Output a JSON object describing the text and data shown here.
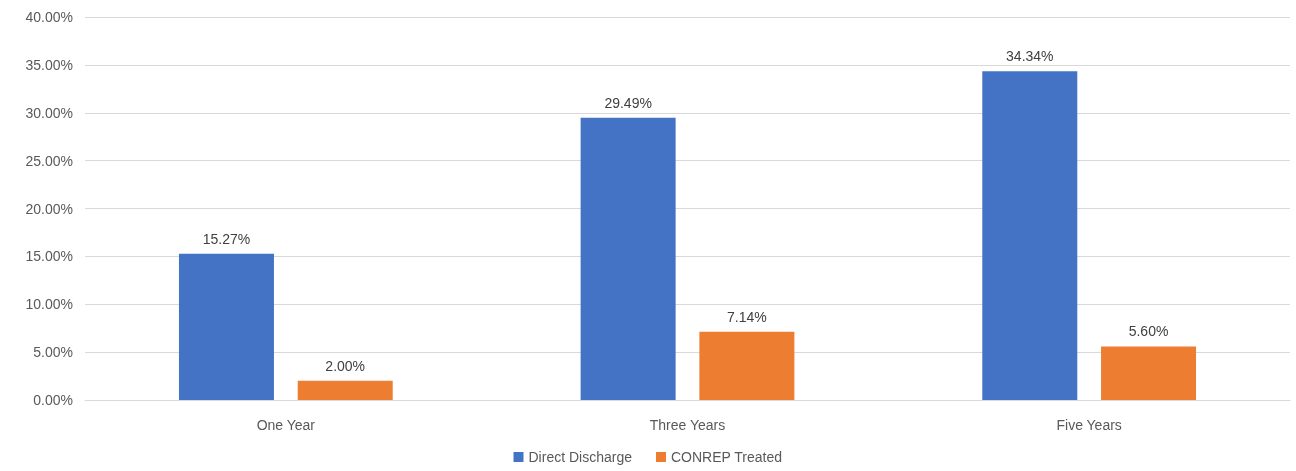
{
  "chart_data": {
    "type": "bar",
    "categories": [
      "One Year",
      "Three Years",
      "Five Years"
    ],
    "series": [
      {
        "name": "Direct Discharge",
        "color": "#4472c4",
        "values": [
          15.27,
          29.49,
          34.34
        ],
        "value_labels": [
          "15.27%",
          "29.49%",
          "34.34%"
        ]
      },
      {
        "name": "CONREP Treated",
        "color": "#ed7d31",
        "values": [
          2.0,
          7.14,
          5.6
        ],
        "value_labels": [
          "2.00%",
          "7.14%",
          "5.60%"
        ]
      }
    ],
    "ylim": [
      0,
      40
    ],
    "yticks": [
      {
        "value": 0,
        "label": "0.00%"
      },
      {
        "value": 5,
        "label": "5.00%"
      },
      {
        "value": 10,
        "label": "10.00%"
      },
      {
        "value": 15,
        "label": "15.00%"
      },
      {
        "value": 20,
        "label": "20.00%"
      },
      {
        "value": 25,
        "label": "25.00%"
      },
      {
        "value": 30,
        "label": "30.00%"
      },
      {
        "value": 35,
        "label": "35.00%"
      },
      {
        "value": 40,
        "label": "40.00%"
      }
    ],
    "grid": "y",
    "legend": "bottom"
  }
}
